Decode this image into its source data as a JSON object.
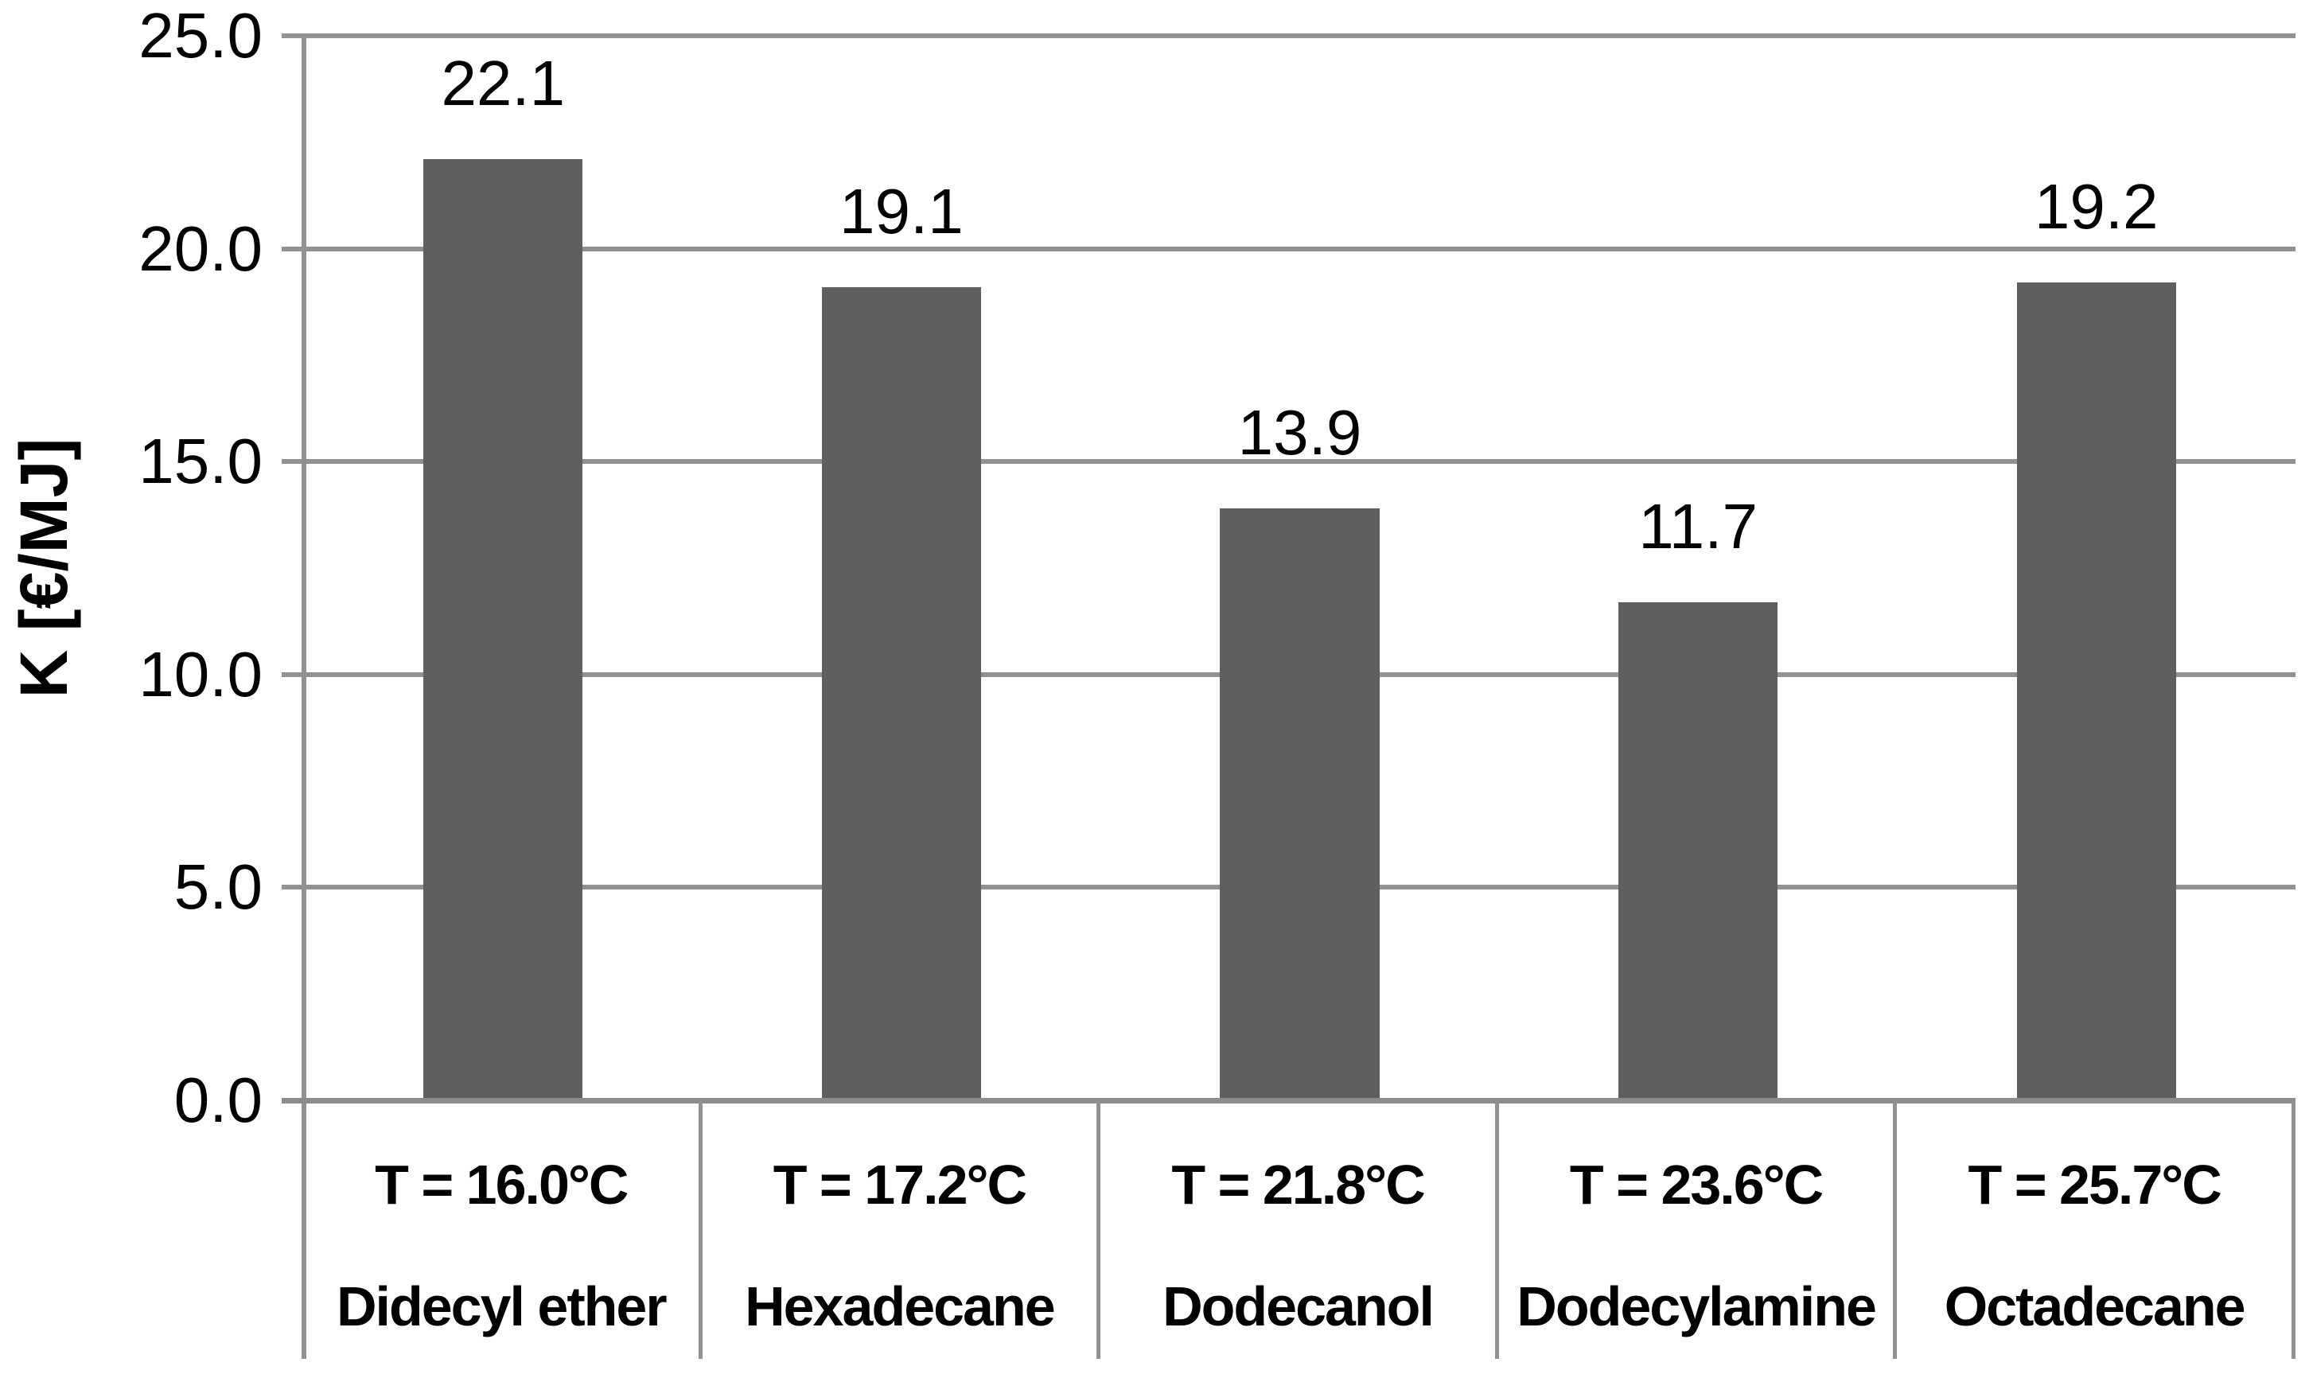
{
  "chart_data": {
    "type": "bar",
    "title": "",
    "ylabel": "K [€/MJ]",
    "xlabel": "",
    "ylim": [
      0,
      25
    ],
    "ytick_labels": [
      "25.0",
      "20.0",
      "15.0",
      "10.0",
      "5.0",
      "0.0"
    ],
    "grid": true,
    "legend": "none",
    "bar_color": "#5f5f5f",
    "axis_color": "#919191",
    "categories": [
      "Didecyl ether",
      "Hexadecane",
      "Dodecanol",
      "Dodecylamine",
      "Octadecane"
    ],
    "category_temperatures": [
      "T = 16.0°C",
      "T = 17.2°C",
      "T = 21.8°C",
      "T = 23.6°C",
      "T = 25.7°C"
    ],
    "values": [
      22.1,
      19.1,
      13.9,
      11.7,
      19.2
    ],
    "data_labels": [
      "22.1",
      "19.1",
      "13.9",
      "11.7",
      "19.2"
    ]
  }
}
